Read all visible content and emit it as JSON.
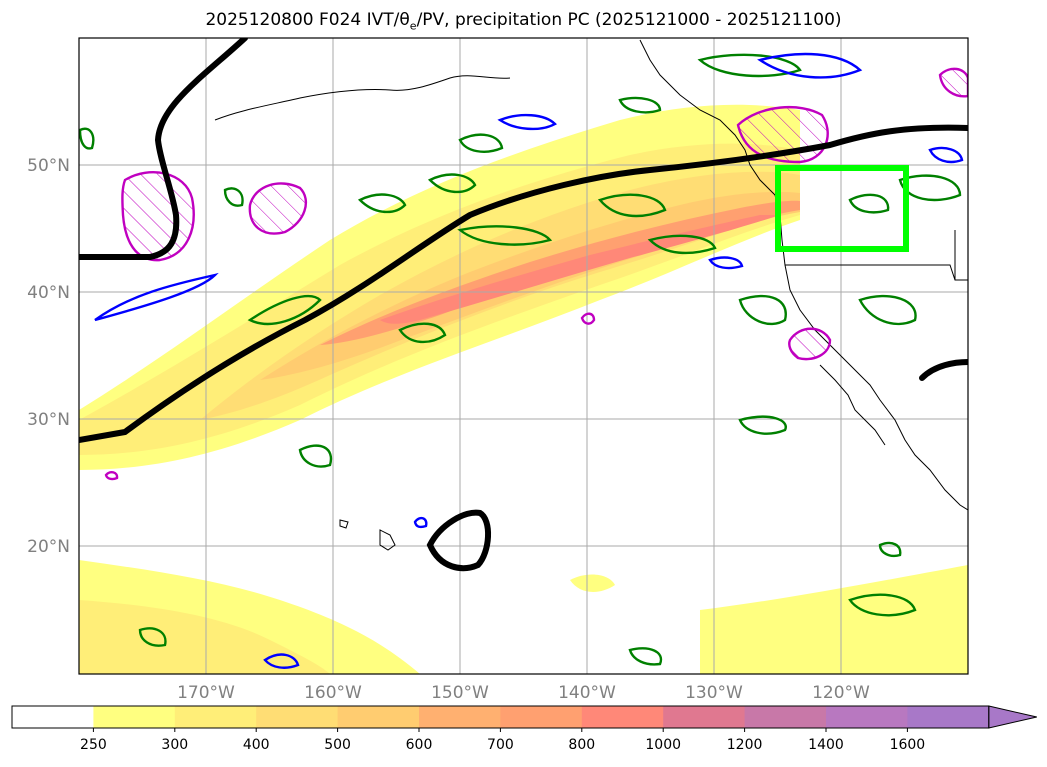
{
  "title_parts": {
    "prefix": "2025120800 F024 IVT/θ",
    "sub": "e",
    "suffix": "/PV, precipitation PC (2025121000 - 2025121100)"
  },
  "axes": {
    "lat_labels": [
      {
        "lat": 50,
        "label": "50°N"
      },
      {
        "lat": 40,
        "label": "40°N"
      },
      {
        "lat": 30,
        "label": "30°N"
      },
      {
        "lat": 20,
        "label": "20°N"
      }
    ],
    "lon_labels": [
      {
        "lon": -170,
        "label": "170°W"
      },
      {
        "lon": -160,
        "label": "160°W"
      },
      {
        "lon": -150,
        "label": "150°W"
      },
      {
        "lon": -140,
        "label": "140°W"
      },
      {
        "lon": -130,
        "label": "130°W"
      },
      {
        "lon": -120,
        "label": "120°W"
      }
    ],
    "extent": {
      "lon_min": -180,
      "lon_max": -110,
      "lat_min": 10,
      "lat_max": 60
    }
  },
  "colorbar": {
    "levels": [
      "250",
      "300",
      "400",
      "500",
      "600",
      "700",
      "800",
      "1000",
      "1200",
      "1400",
      "1600"
    ],
    "colors": [
      "#ffffff",
      "#ffff80",
      "#ffee78",
      "#ffdd74",
      "#ffcc70",
      "#ffb070",
      "#ffa070",
      "#ff8878",
      "#e07890",
      "#c878a8",
      "#b878c0",
      "#a878c8"
    ],
    "extend": "max"
  },
  "colors": {
    "theta_e_contour": "#008000",
    "pv_contour": "#0000ff",
    "pc_contour": "#c000c0",
    "jet_line": "#000000",
    "region_box": "#00ff00",
    "grid": "#aaaaaa"
  }
}
